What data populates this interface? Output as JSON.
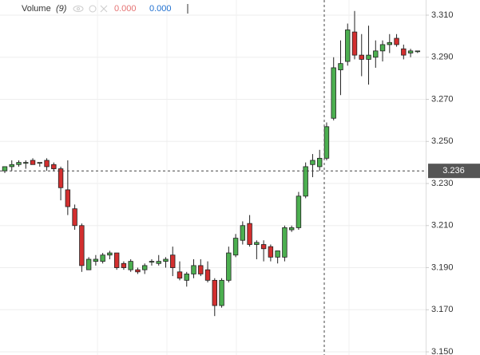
{
  "chart_data": {
    "type": "candlestick",
    "legend": {
      "label": "Volume",
      "param": "(9)",
      "values": [
        "0.000",
        "0.000"
      ]
    },
    "up_color": "#4caf50",
    "down_color": "#d32f2f",
    "open": [
      3.236,
      3.238,
      3.239,
      3.24,
      3.241,
      3.24,
      3.241,
      3.239,
      3.237,
      3.227,
      3.218,
      3.21,
      3.189,
      3.193,
      3.193,
      3.196,
      3.197,
      3.192,
      3.189,
      3.189,
      3.189,
      3.193,
      3.192,
      3.193,
      3.196,
      3.188,
      3.184,
      3.187,
      3.191,
      3.189,
      3.184,
      3.172,
      3.184,
      3.196,
      3.203,
      3.211,
      3.201,
      3.201,
      3.2,
      3.195,
      3.195,
      3.208,
      3.209,
      3.224,
      3.239,
      3.238,
      3.242,
      3.261,
      3.284,
      3.288,
      3.302,
      3.291,
      3.289,
      3.29,
      3.293,
      3.296,
      3.299,
      3.294,
      3.292,
      3.293
    ],
    "high": [
      3.238,
      3.241,
      3.241,
      3.241,
      3.242,
      3.24,
      3.242,
      3.24,
      3.238,
      3.241,
      3.22,
      3.211,
      3.195,
      3.196,
      3.197,
      3.198,
      3.197,
      3.193,
      3.194,
      3.19,
      3.192,
      3.194,
      3.196,
      3.195,
      3.2,
      3.193,
      3.188,
      3.194,
      3.194,
      3.193,
      3.185,
      3.185,
      3.2,
      3.206,
      3.212,
      3.215,
      3.203,
      3.203,
      3.201,
      3.198,
      3.21,
      3.21,
      3.226,
      3.24,
      3.244,
      3.246,
      3.259,
      3.29,
      3.298,
      3.306,
      3.312,
      3.301,
      3.305,
      3.298,
      3.298,
      3.301,
      3.301,
      3.296,
      3.294,
      3.293
    ],
    "low": [
      3.235,
      3.236,
      3.238,
      3.237,
      3.239,
      3.238,
      3.236,
      3.236,
      3.222,
      3.215,
      3.208,
      3.188,
      3.189,
      3.191,
      3.192,
      3.194,
      3.189,
      3.189,
      3.188,
      3.187,
      3.187,
      3.191,
      3.191,
      3.19,
      3.186,
      3.184,
      3.181,
      3.185,
      3.186,
      3.183,
      3.167,
      3.171,
      3.183,
      3.195,
      3.201,
      3.2,
      3.194,
      3.193,
      3.193,
      3.192,
      3.193,
      3.207,
      3.208,
      3.223,
      3.233,
      3.236,
      3.241,
      3.26,
      3.272,
      3.286,
      3.289,
      3.281,
      3.277,
      3.285,
      3.288,
      3.292,
      3.295,
      3.289,
      3.29,
      3.292
    ],
    "close": [
      3.238,
      3.239,
      3.24,
      3.24,
      3.239,
      3.24,
      3.238,
      3.237,
      3.228,
      3.219,
      3.21,
      3.191,
      3.194,
      3.194,
      3.196,
      3.197,
      3.19,
      3.19,
      3.193,
      3.188,
      3.191,
      3.193,
      3.193,
      3.194,
      3.19,
      3.185,
      3.187,
      3.191,
      3.187,
      3.184,
      3.172,
      3.184,
      3.197,
      3.204,
      3.21,
      3.201,
      3.202,
      3.199,
      3.195,
      3.198,
      3.209,
      3.209,
      3.224,
      3.238,
      3.241,
      3.242,
      3.257,
      3.285,
      3.287,
      3.303,
      3.291,
      3.289,
      3.291,
      3.293,
      3.296,
      3.297,
      3.296,
      3.291,
      3.293,
      3.293
    ],
    "ylim": [
      3.1485,
      3.3172
    ],
    "yticks": [
      {
        "value": 3.15,
        "label": "3.150"
      },
      {
        "value": 3.17,
        "label": "3.170"
      },
      {
        "value": 3.19,
        "label": "3.190"
      },
      {
        "value": 3.21,
        "label": "3.210"
      },
      {
        "value": 3.23,
        "label": "3.230"
      },
      {
        "value": 3.25,
        "label": "3.250"
      },
      {
        "value": 3.27,
        "label": "3.270"
      },
      {
        "value": 3.29,
        "label": "3.290"
      },
      {
        "value": 3.31,
        "label": "3.310"
      }
    ],
    "crosshair": {
      "value": 3.236,
      "label": "3.236"
    },
    "grid": true
  }
}
